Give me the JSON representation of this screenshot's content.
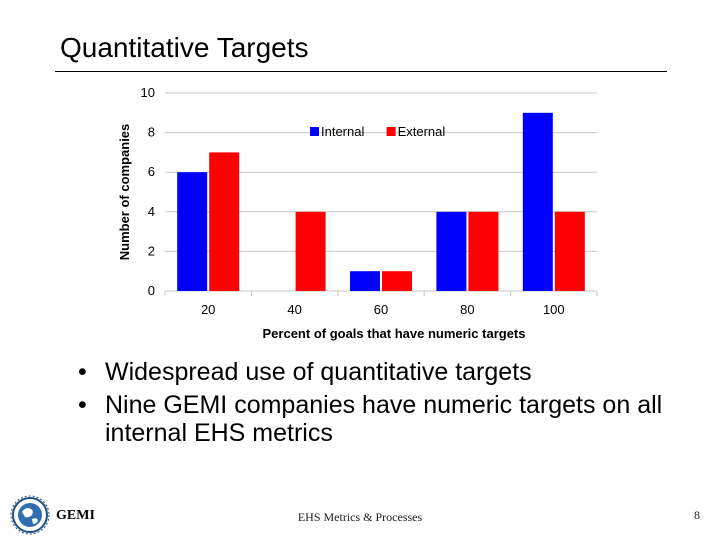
{
  "slide": {
    "title": "Quantitative Targets",
    "bullets": [
      "Widespread use of quantitative targets",
      "Nine GEMI companies have numeric targets on all internal EHS metrics"
    ],
    "bullet_glyph": "•",
    "footer": {
      "brand": "GEMI",
      "center": "EHS Metrics & Processes",
      "page_number": "8",
      "logo_icon": "globe-logo-icon"
    }
  },
  "chart_data": {
    "type": "bar",
    "categories": [
      "20",
      "40",
      "60",
      "80",
      "100"
    ],
    "series": [
      {
        "name": "Internal",
        "values": [
          6,
          0,
          1,
          4,
          9
        ],
        "color": "#0000ff"
      },
      {
        "name": "External",
        "values": [
          7,
          4,
          1,
          4,
          4
        ],
        "color": "#ff0000"
      }
    ],
    "xlabel": "Percent of goals that have numeric targets",
    "ylabel": "Number of companies",
    "ylim": [
      0,
      10
    ],
    "yticks": [
      0,
      2,
      4,
      6,
      8,
      10
    ],
    "grid": true,
    "legend": "top-center"
  }
}
